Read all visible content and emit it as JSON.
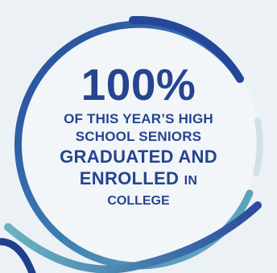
{
  "stat": {
    "value": "100%",
    "line1": "OF THIS YEAR’S HIGH",
    "line2": "SCHOOL SENIORS",
    "line3": "GRADUATED AND",
    "line4_bold": "ENROLLED",
    "line4_small": "IN",
    "line5": "COLLEGE"
  },
  "colors": {
    "background": "#ecf1f6",
    "text": "#26448f",
    "ring_dark": "#24479a",
    "ring_teal": "#6ab3c2",
    "ring_light": "#cfe2e7",
    "ring_fill": "#f2f6f9"
  }
}
